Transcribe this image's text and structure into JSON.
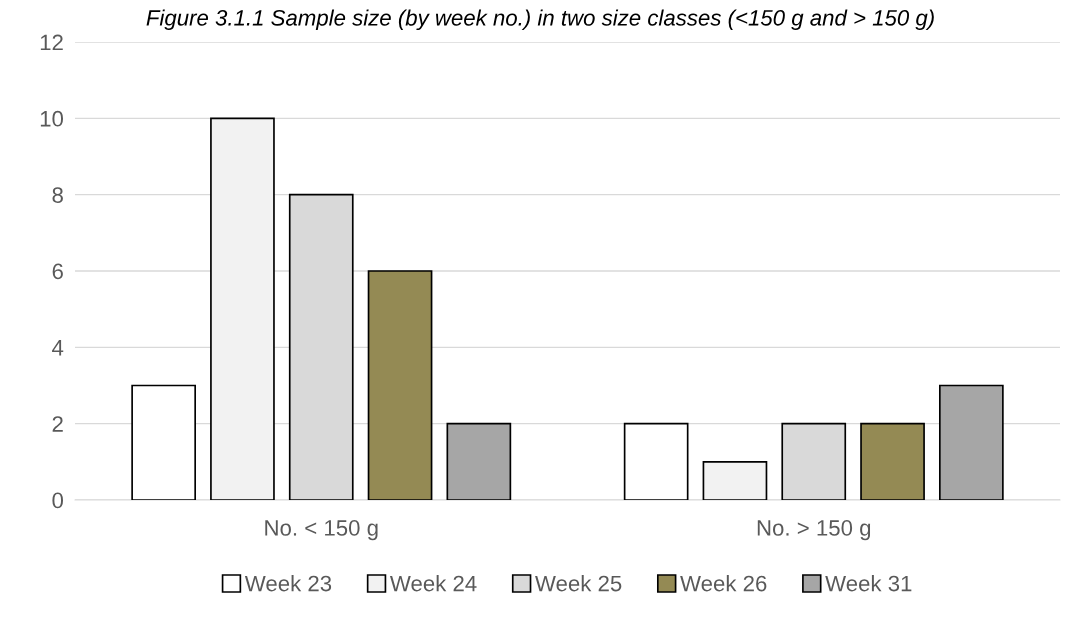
{
  "chart_data": {
    "type": "bar",
    "title": "Figure 3.1.1 Sample size (by week no.) in two size classes (<150 g and > 150 g)",
    "categories": [
      "No. < 150 g",
      "No. > 150 g"
    ],
    "series": [
      {
        "name": "Week 23",
        "color": "#ffffff",
        "values": [
          3,
          2
        ]
      },
      {
        "name": "Week 24",
        "color": "#f2f2f2",
        "values": [
          10,
          1
        ]
      },
      {
        "name": "Week 25",
        "color": "#d9d9d9",
        "values": [
          8,
          2
        ]
      },
      {
        "name": "Week 26",
        "color": "#948a54",
        "values": [
          6,
          2
        ]
      },
      {
        "name": "Week 31",
        "color": "#a6a6a6",
        "values": [
          2,
          3
        ]
      }
    ],
    "ylim": [
      0,
      12
    ],
    "yticks": [
      0,
      2,
      4,
      6,
      8,
      10,
      12
    ],
    "grid": "y",
    "legend": "bottom"
  }
}
